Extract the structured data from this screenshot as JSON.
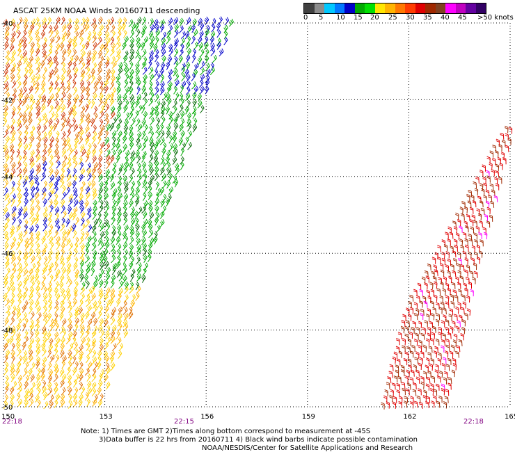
{
  "title": "ASCAT 25KM NOAA Winds 20160711 descending",
  "legend": {
    "colors": [
      "#404040",
      "#8c8c8c",
      "#00c8ff",
      "#0078ff",
      "#0000c8",
      "#00aa00",
      "#00e000",
      "#ffe600",
      "#ffb400",
      "#ff7800",
      "#ff3c00",
      "#e00000",
      "#a02800",
      "#804020",
      "#ff00ff",
      "#c000c0",
      "#6400a0",
      "#320064"
    ],
    "labels": [
      "0",
      "5",
      "10",
      "15",
      "20",
      "25",
      "30",
      "35",
      "40",
      "45",
      ">50 knots"
    ]
  },
  "chart_data": {
    "type": "map",
    "lon_range": [
      150,
      165
    ],
    "lat_range": [
      -40,
      -50
    ],
    "lon_ticks": [
      "150",
      "153",
      "156",
      "159",
      "162",
      "165"
    ],
    "lat_ticks": [
      "-40",
      "-42",
      "-44",
      "-46",
      "-48",
      "-50"
    ],
    "time_labels": [
      "22:18",
      "22:15",
      "22:18"
    ],
    "swaths": [
      {
        "name": "west",
        "colors_present": [
          "yellow",
          "orange",
          "red",
          "green",
          "dark-green",
          "blue"
        ]
      },
      {
        "name": "east",
        "colors_present": [
          "red",
          "brown",
          "magenta"
        ]
      }
    ],
    "grid": true
  },
  "notes": {
    "line1": "Note: 1) Times are GMT 2)Times along bottom correspond to measurement at -45S",
    "line2": "3)Data buffer is 22 hrs from 20160711 4) Black wind barbs indicate possible contamination",
    "line3": "NOAA/NESDIS/Center for Satellite Applications and Research"
  }
}
